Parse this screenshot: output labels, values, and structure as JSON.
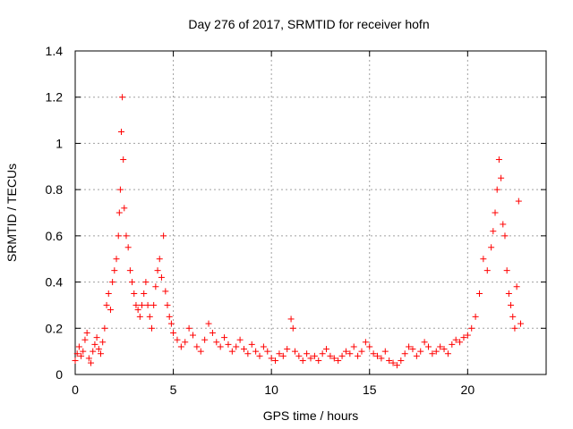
{
  "chart_data": {
    "type": "scatter",
    "title": "Day 276 of 2017, SRMTID for receiver hofn",
    "xlabel": "GPS time / hours",
    "ylabel": "SRMTID / TECUs",
    "xlim": [
      0,
      24
    ],
    "ylim": [
      0,
      1.4
    ],
    "xticks": [
      "0",
      "5",
      "10",
      "15",
      "20"
    ],
    "yticks": [
      "0",
      "0.2",
      "0.4",
      "0.6",
      "0.8",
      "1",
      "1.2",
      "1.4"
    ],
    "grid": true,
    "marker": "+",
    "color": "#ff0000",
    "series": [
      {
        "name": "SRMTID",
        "x": [
          0.0,
          0.1,
          0.2,
          0.3,
          0.4,
          0.5,
          0.6,
          0.7,
          0.8,
          0.9,
          1.0,
          1.1,
          1.2,
          1.3,
          1.4,
          1.5,
          1.6,
          1.7,
          1.8,
          1.9,
          2.0,
          2.1,
          2.2,
          2.25,
          2.3,
          2.35,
          2.4,
          2.45,
          2.5,
          2.6,
          2.7,
          2.8,
          2.9,
          3.0,
          3.1,
          3.2,
          3.3,
          3.4,
          3.5,
          3.6,
          3.7,
          3.8,
          3.9,
          4.0,
          4.1,
          4.2,
          4.3,
          4.4,
          4.5,
          4.6,
          4.7,
          4.8,
          4.9,
          5.0,
          5.2,
          5.4,
          5.6,
          5.8,
          6.0,
          6.2,
          6.4,
          6.6,
          6.8,
          7.0,
          7.2,
          7.4,
          7.6,
          7.8,
          8.0,
          8.2,
          8.4,
          8.6,
          8.8,
          9.0,
          9.2,
          9.4,
          9.6,
          9.8,
          10.0,
          10.2,
          10.4,
          10.6,
          10.8,
          11.0,
          11.1,
          11.2,
          11.4,
          11.6,
          11.8,
          12.0,
          12.2,
          12.4,
          12.6,
          12.8,
          13.0,
          13.2,
          13.4,
          13.6,
          13.8,
          14.0,
          14.2,
          14.4,
          14.6,
          14.8,
          15.0,
          15.2,
          15.4,
          15.6,
          15.8,
          16.0,
          16.2,
          16.4,
          16.6,
          16.8,
          17.0,
          17.2,
          17.4,
          17.6,
          17.8,
          18.0,
          18.2,
          18.4,
          18.6,
          18.8,
          19.0,
          19.2,
          19.4,
          19.6,
          19.8,
          20.0,
          20.2,
          20.4,
          20.6,
          20.8,
          21.0,
          21.2,
          21.3,
          21.4,
          21.5,
          21.6,
          21.7,
          21.8,
          21.9,
          22.0,
          22.1,
          22.2,
          22.3,
          22.4,
          22.5,
          22.6,
          22.7
        ],
        "y": [
          0.06,
          0.09,
          0.12,
          0.08,
          0.1,
          0.15,
          0.18,
          0.07,
          0.05,
          0.1,
          0.13,
          0.16,
          0.11,
          0.09,
          0.14,
          0.2,
          0.3,
          0.35,
          0.28,
          0.4,
          0.45,
          0.5,
          0.6,
          0.7,
          0.8,
          1.05,
          1.2,
          0.93,
          0.72,
          0.6,
          0.55,
          0.45,
          0.4,
          0.35,
          0.3,
          0.28,
          0.25,
          0.3,
          0.35,
          0.4,
          0.3,
          0.25,
          0.2,
          0.3,
          0.38,
          0.45,
          0.5,
          0.42,
          0.6,
          0.36,
          0.3,
          0.25,
          0.22,
          0.18,
          0.15,
          0.12,
          0.14,
          0.2,
          0.17,
          0.12,
          0.1,
          0.15,
          0.22,
          0.18,
          0.14,
          0.12,
          0.16,
          0.13,
          0.1,
          0.12,
          0.15,
          0.11,
          0.09,
          0.13,
          0.1,
          0.08,
          0.12,
          0.1,
          0.07,
          0.06,
          0.09,
          0.08,
          0.11,
          0.24,
          0.2,
          0.1,
          0.08,
          0.06,
          0.09,
          0.07,
          0.08,
          0.06,
          0.09,
          0.11,
          0.08,
          0.07,
          0.06,
          0.08,
          0.1,
          0.09,
          0.12,
          0.08,
          0.1,
          0.14,
          0.12,
          0.09,
          0.08,
          0.07,
          0.1,
          0.06,
          0.05,
          0.04,
          0.06,
          0.09,
          0.12,
          0.11,
          0.08,
          0.1,
          0.14,
          0.12,
          0.09,
          0.1,
          0.12,
          0.11,
          0.09,
          0.13,
          0.15,
          0.14,
          0.16,
          0.17,
          0.2,
          0.25,
          0.35,
          0.5,
          0.45,
          0.55,
          0.62,
          0.7,
          0.8,
          0.93,
          0.85,
          0.65,
          0.6,
          0.45,
          0.35,
          0.3,
          0.25,
          0.2,
          0.38,
          0.75,
          0.22
        ]
      }
    ]
  }
}
